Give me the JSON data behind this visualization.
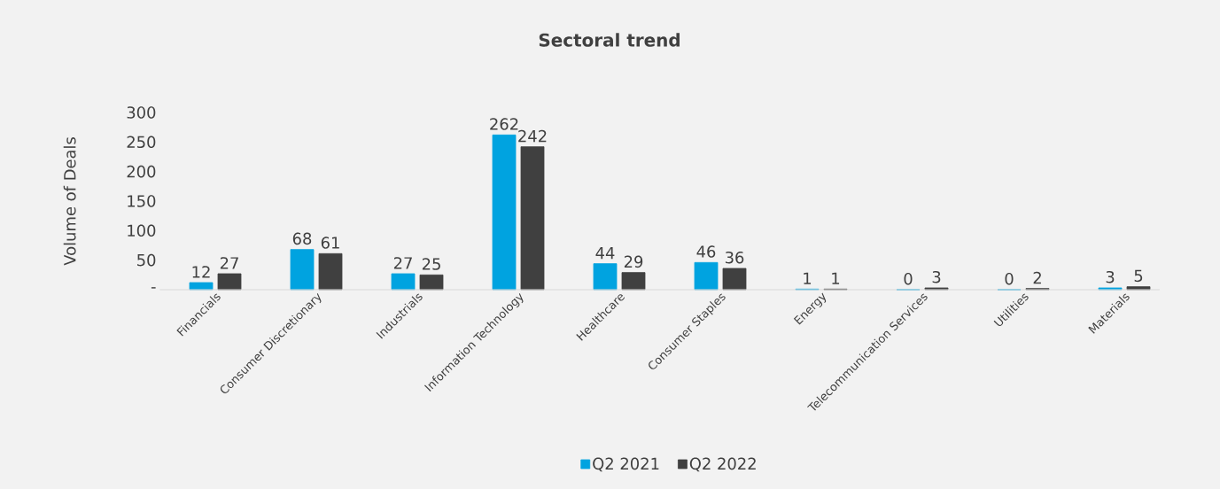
{
  "chart_data": {
    "type": "bar",
    "title": "Sectoral trend",
    "ylabel": "Volume of Deals",
    "categories": [
      "Financials",
      "Consumer Discretionary",
      "Industrials",
      "Information Technology",
      "Healthcare",
      "Consumer Staples",
      "Energy",
      "Telecommunication Services",
      "Utilities",
      "Materials"
    ],
    "series": [
      {
        "name": "Q2 2021",
        "color": "#00a3e0",
        "values": [
          12,
          68,
          27,
          262,
          44,
          46,
          1,
          0,
          0,
          3
        ]
      },
      {
        "name": "Q2 2022",
        "color": "#404040",
        "values": [
          27,
          61,
          25,
          242,
          29,
          36,
          1,
          3,
          2,
          5
        ]
      }
    ],
    "ylim": [
      0,
      300
    ],
    "yticks": [
      {
        "value": 0,
        "label": "-"
      },
      50,
      100,
      150,
      200,
      250,
      300
    ],
    "data_labels": true,
    "legend": "bottom"
  }
}
